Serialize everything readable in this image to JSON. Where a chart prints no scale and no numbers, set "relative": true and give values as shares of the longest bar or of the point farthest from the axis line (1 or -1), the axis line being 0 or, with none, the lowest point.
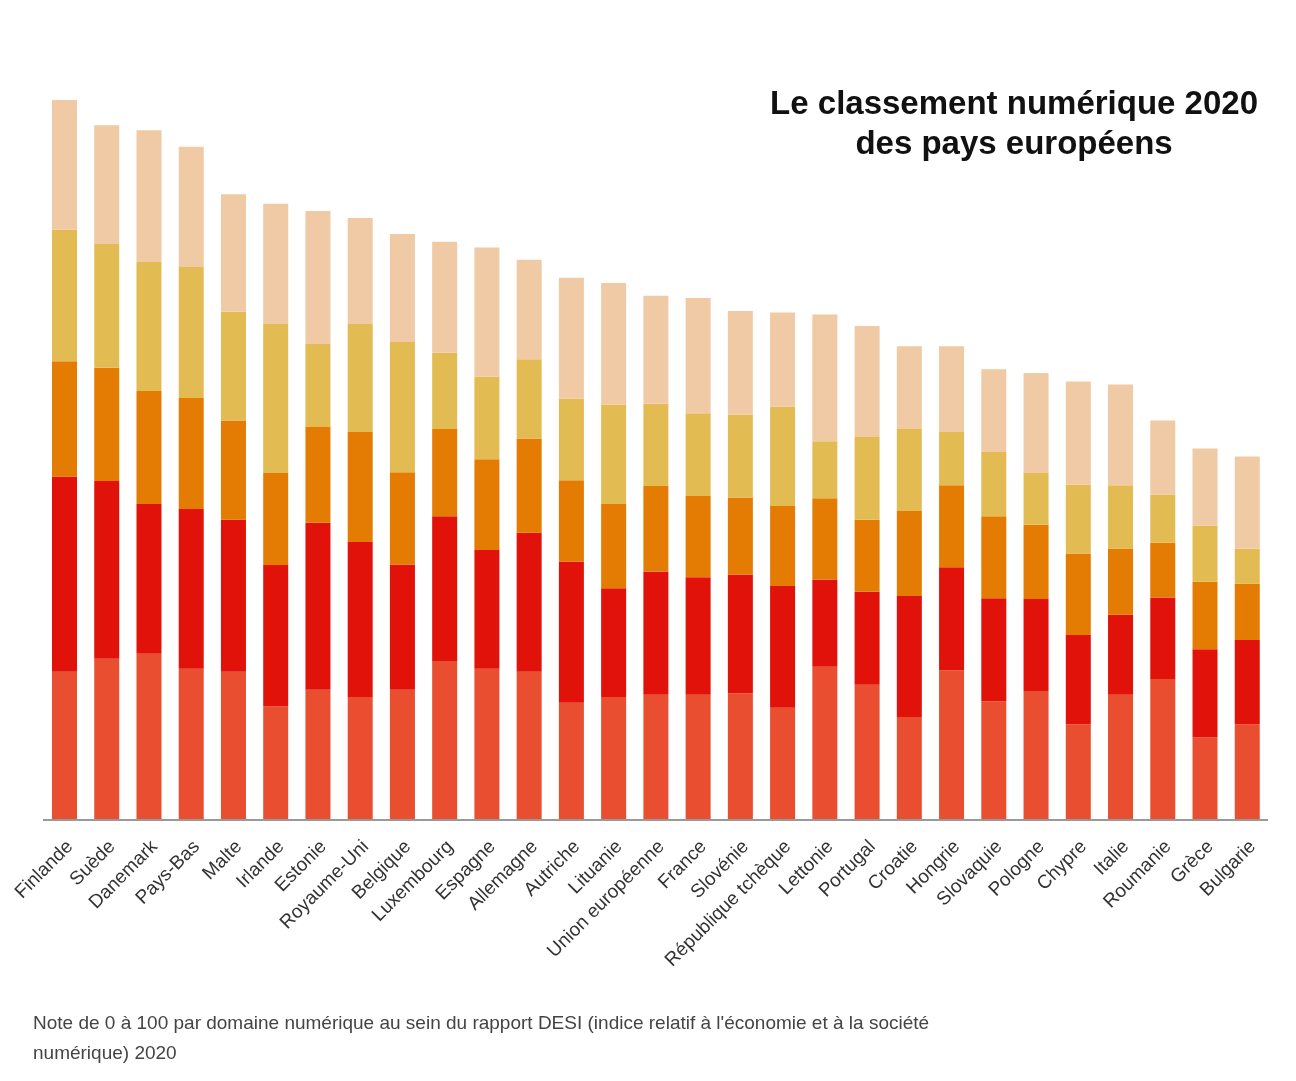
{
  "chart_data": {
    "type": "bar",
    "title": "Le classement numérique 2020\ndes pays européens",
    "stacked": true,
    "relative": true,
    "categories": [
      "Finlande",
      "Suède",
      "Danemark",
      "Pays-Bas",
      "Malte",
      "Irlande",
      "Estonie",
      "Royaume-Uni",
      "Belgique",
      "Luxembourg",
      "Espagne",
      "Allemagne",
      "Autriche",
      "Lituanie",
      "Union européenne",
      "France",
      "Slovénie",
      "République tchèque",
      "Lettonie",
      "Portugal",
      "Croatie",
      "Hongrie",
      "Slovaquie",
      "Pologne",
      "Chypre",
      "Italie",
      "Roumanie",
      "Grèce",
      "Bulgarie"
    ],
    "series": [
      {
        "color": "#e84e2f",
        "values": [
          0.206,
          0.224,
          0.231,
          0.21,
          0.206,
          0.158,
          0.181,
          0.171,
          0.181,
          0.221,
          0.21,
          0.206,
          0.163,
          0.171,
          0.174,
          0.174,
          0.176,
          0.156,
          0.213,
          0.188,
          0.143,
          0.208,
          0.165,
          0.179,
          0.133,
          0.174,
          0.196,
          0.115,
          0.133
        ]
      },
      {
        "color": "#e0120a",
        "values": [
          0.271,
          0.247,
          0.208,
          0.222,
          0.211,
          0.196,
          0.232,
          0.215,
          0.174,
          0.201,
          0.165,
          0.193,
          0.196,
          0.151,
          0.171,
          0.163,
          0.165,
          0.169,
          0.121,
          0.129,
          0.168,
          0.143,
          0.143,
          0.128,
          0.124,
          0.111,
          0.113,
          0.122,
          0.117
        ]
      },
      {
        "color": "#e47b03",
        "values": [
          0.16,
          0.157,
          0.157,
          0.154,
          0.138,
          0.128,
          0.133,
          0.153,
          0.128,
          0.121,
          0.126,
          0.131,
          0.113,
          0.117,
          0.119,
          0.113,
          0.107,
          0.111,
          0.113,
          0.1,
          0.118,
          0.114,
          0.114,
          0.103,
          0.113,
          0.092,
          0.076,
          0.094,
          0.078
        ]
      },
      {
        "color": "#e3bb53",
        "values": [
          0.183,
          0.172,
          0.179,
          0.182,
          0.151,
          0.207,
          0.115,
          0.15,
          0.181,
          0.106,
          0.115,
          0.11,
          0.113,
          0.138,
          0.114,
          0.115,
          0.115,
          0.138,
          0.079,
          0.115,
          0.114,
          0.074,
          0.089,
          0.072,
          0.096,
          0.088,
          0.067,
          0.078,
          0.049
        ]
      },
      {
        "color": "#efcaa4",
        "values": [
          0.18,
          0.165,
          0.183,
          0.167,
          0.163,
          0.167,
          0.185,
          0.147,
          0.15,
          0.154,
          0.179,
          0.138,
          0.168,
          0.169,
          0.15,
          0.16,
          0.144,
          0.131,
          0.176,
          0.154,
          0.115,
          0.119,
          0.115,
          0.139,
          0.143,
          0.14,
          0.103,
          0.107,
          0.128
        ]
      }
    ],
    "annotations": [
      "Note de 0 à 100 par domaine numérique au sein du rapport DESI (indice relatif à l'économie et à la société numérique) 2020"
    ]
  }
}
